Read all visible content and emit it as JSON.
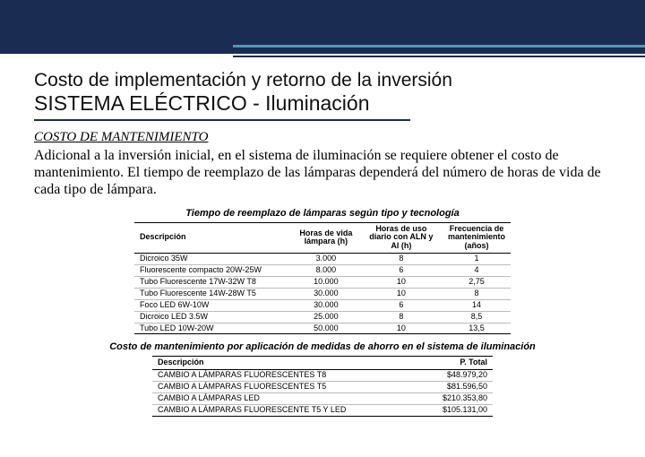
{
  "header": {
    "bg_color": "#1a2c52",
    "accent_color": "#4a9bb8"
  },
  "title_line1": "Costo de implementación y retorno de la inversión",
  "title_line2": "SISTEMA ELÉCTRICO - Iluminación",
  "section_heading": "COSTO DE MANTENIMIENTO",
  "paragraph": "Adicional a la inversión inicial, en el sistema de iluminación se requiere obtener el costo de mantenimiento. El tiempo de reemplazo de las lámparas dependerá del número de horas de vida de cada tipo de lámpara.",
  "table1": {
    "title": "Tiempo de reemplazo de lámparas según tipo y tecnología",
    "columns": [
      "Descripción",
      "Horas de vida lámpara (h)",
      "Horas de uso diario con ALN y AI (h)",
      "Frecuencia de mantenimiento (años)"
    ],
    "rows": [
      [
        "Dicroico 35W",
        "3.000",
        "8",
        "1"
      ],
      [
        "Fluorescente compacto 20W-25W",
        "8.000",
        "6",
        "4"
      ],
      [
        "Tubo Fluorescente 17W-32W  T8",
        "10.000",
        "10",
        "2,75"
      ],
      [
        "Tubo Fluorescente 14W-28W  T5",
        "30.000",
        "10",
        "8"
      ],
      [
        "Foco LED 6W-10W",
        "30.000",
        "6",
        "14"
      ],
      [
        "Dicroico LED 3.5W",
        "25.000",
        "8",
        "8,5"
      ],
      [
        "Tubo LED 10W-20W",
        "50.000",
        "10",
        "13,5"
      ]
    ]
  },
  "table2": {
    "title": "Costo de mantenimiento por aplicación de medidas de ahorro en el sistema de iluminación",
    "columns": [
      "Descripción",
      "P. Total"
    ],
    "rows": [
      [
        "CAMBIO A LÁMPARAS FLUORESCENTES T8",
        "$48.979,20"
      ],
      [
        "CAMBIO A LÁMPARAS FLUORESCENTES T5",
        "$81.596,50"
      ],
      [
        "CAMBIO A LÁMPARAS LED",
        "$210.353,80"
      ],
      [
        "CAMBIO A LÁMPARAS FLUORESCENTE T5 Y LED",
        "$105.131,00"
      ]
    ]
  }
}
